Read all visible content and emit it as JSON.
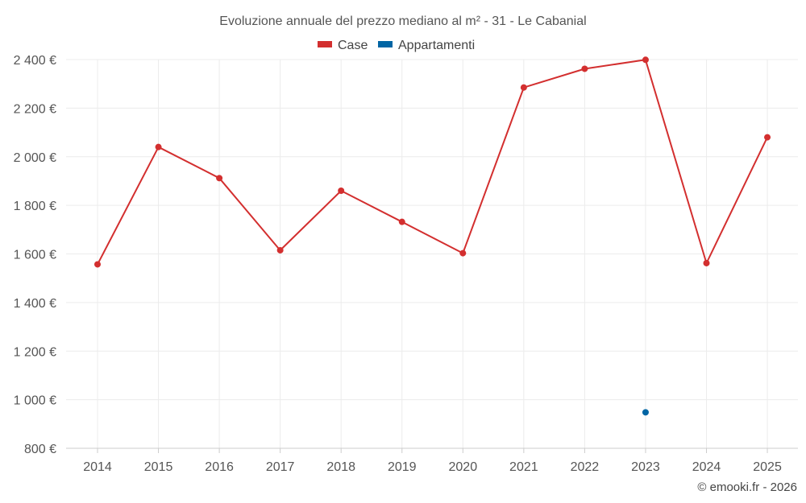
{
  "chart_data": {
    "type": "line",
    "title": "Evoluzione annuale del prezzo mediano al m² - 31 - Le Cabanial",
    "categories": [
      "2014",
      "2015",
      "2016",
      "2017",
      "2018",
      "2019",
      "2020",
      "2021",
      "2022",
      "2023",
      "2024",
      "2025"
    ],
    "series": [
      {
        "name": "Case",
        "color": "#d32f2f",
        "values": [
          1557,
          2040,
          1912,
          1615,
          1860,
          1732,
          1603,
          2285,
          2362,
          2399,
          1562,
          2080
        ]
      },
      {
        "name": "Appartamenti",
        "color": "#0065a4",
        "values": [
          null,
          null,
          null,
          null,
          null,
          null,
          null,
          null,
          null,
          948,
          null,
          null
        ]
      }
    ],
    "ylim": [
      800,
      2400
    ],
    "yticks": [
      800,
      1000,
      1200,
      1400,
      1600,
      1800,
      2000,
      2200,
      2400
    ],
    "ytick_labels": [
      "800 €",
      "1 000 €",
      "1 200 €",
      "1 400 €",
      "1 600 €",
      "1 800 €",
      "2 000 €",
      "2 200 €",
      "2 400 €"
    ],
    "xlabel": "",
    "ylabel": "",
    "grid": true,
    "legend_position": "top-center"
  },
  "credit": "© emooki.fr - 2026"
}
